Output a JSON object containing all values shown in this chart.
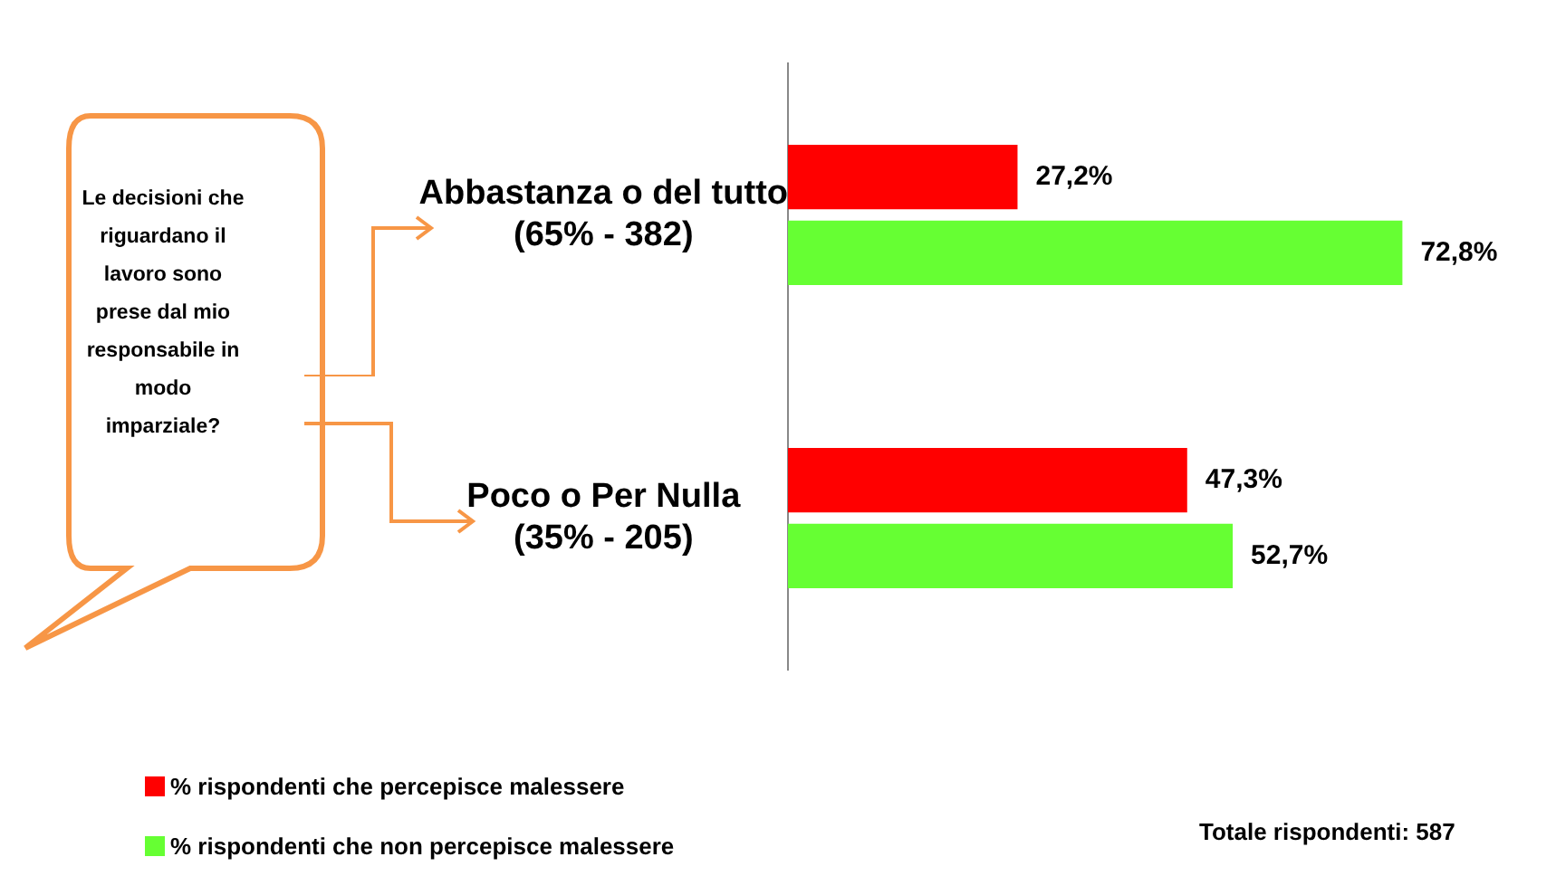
{
  "chart_data": {
    "type": "bar",
    "orientation": "horizontal",
    "categories": [
      "Abbastanza o del tutto\n(65% - 382)",
      "Poco o Per Nulla\n(35% - 205)"
    ],
    "series": [
      {
        "name": "% rispondenti che percepisce malessere",
        "color": "#ff0000",
        "values": [
          27.2,
          47.3
        ],
        "value_labels": [
          "27,2%",
          "47,3%"
        ]
      },
      {
        "name": "% rispondenti che non percepisce malessere",
        "color": "#66ff33",
        "values": [
          72.8,
          52.7
        ],
        "value_labels": [
          "72,8%",
          "52,7%"
        ]
      }
    ],
    "legend": "bottom left",
    "grid": false,
    "annotations": [
      "Le decisioni che riguardano il lavoro sono prese dal mio responsabile in modo imparziale?",
      "Totale rispondenti: 587"
    ]
  }
}
